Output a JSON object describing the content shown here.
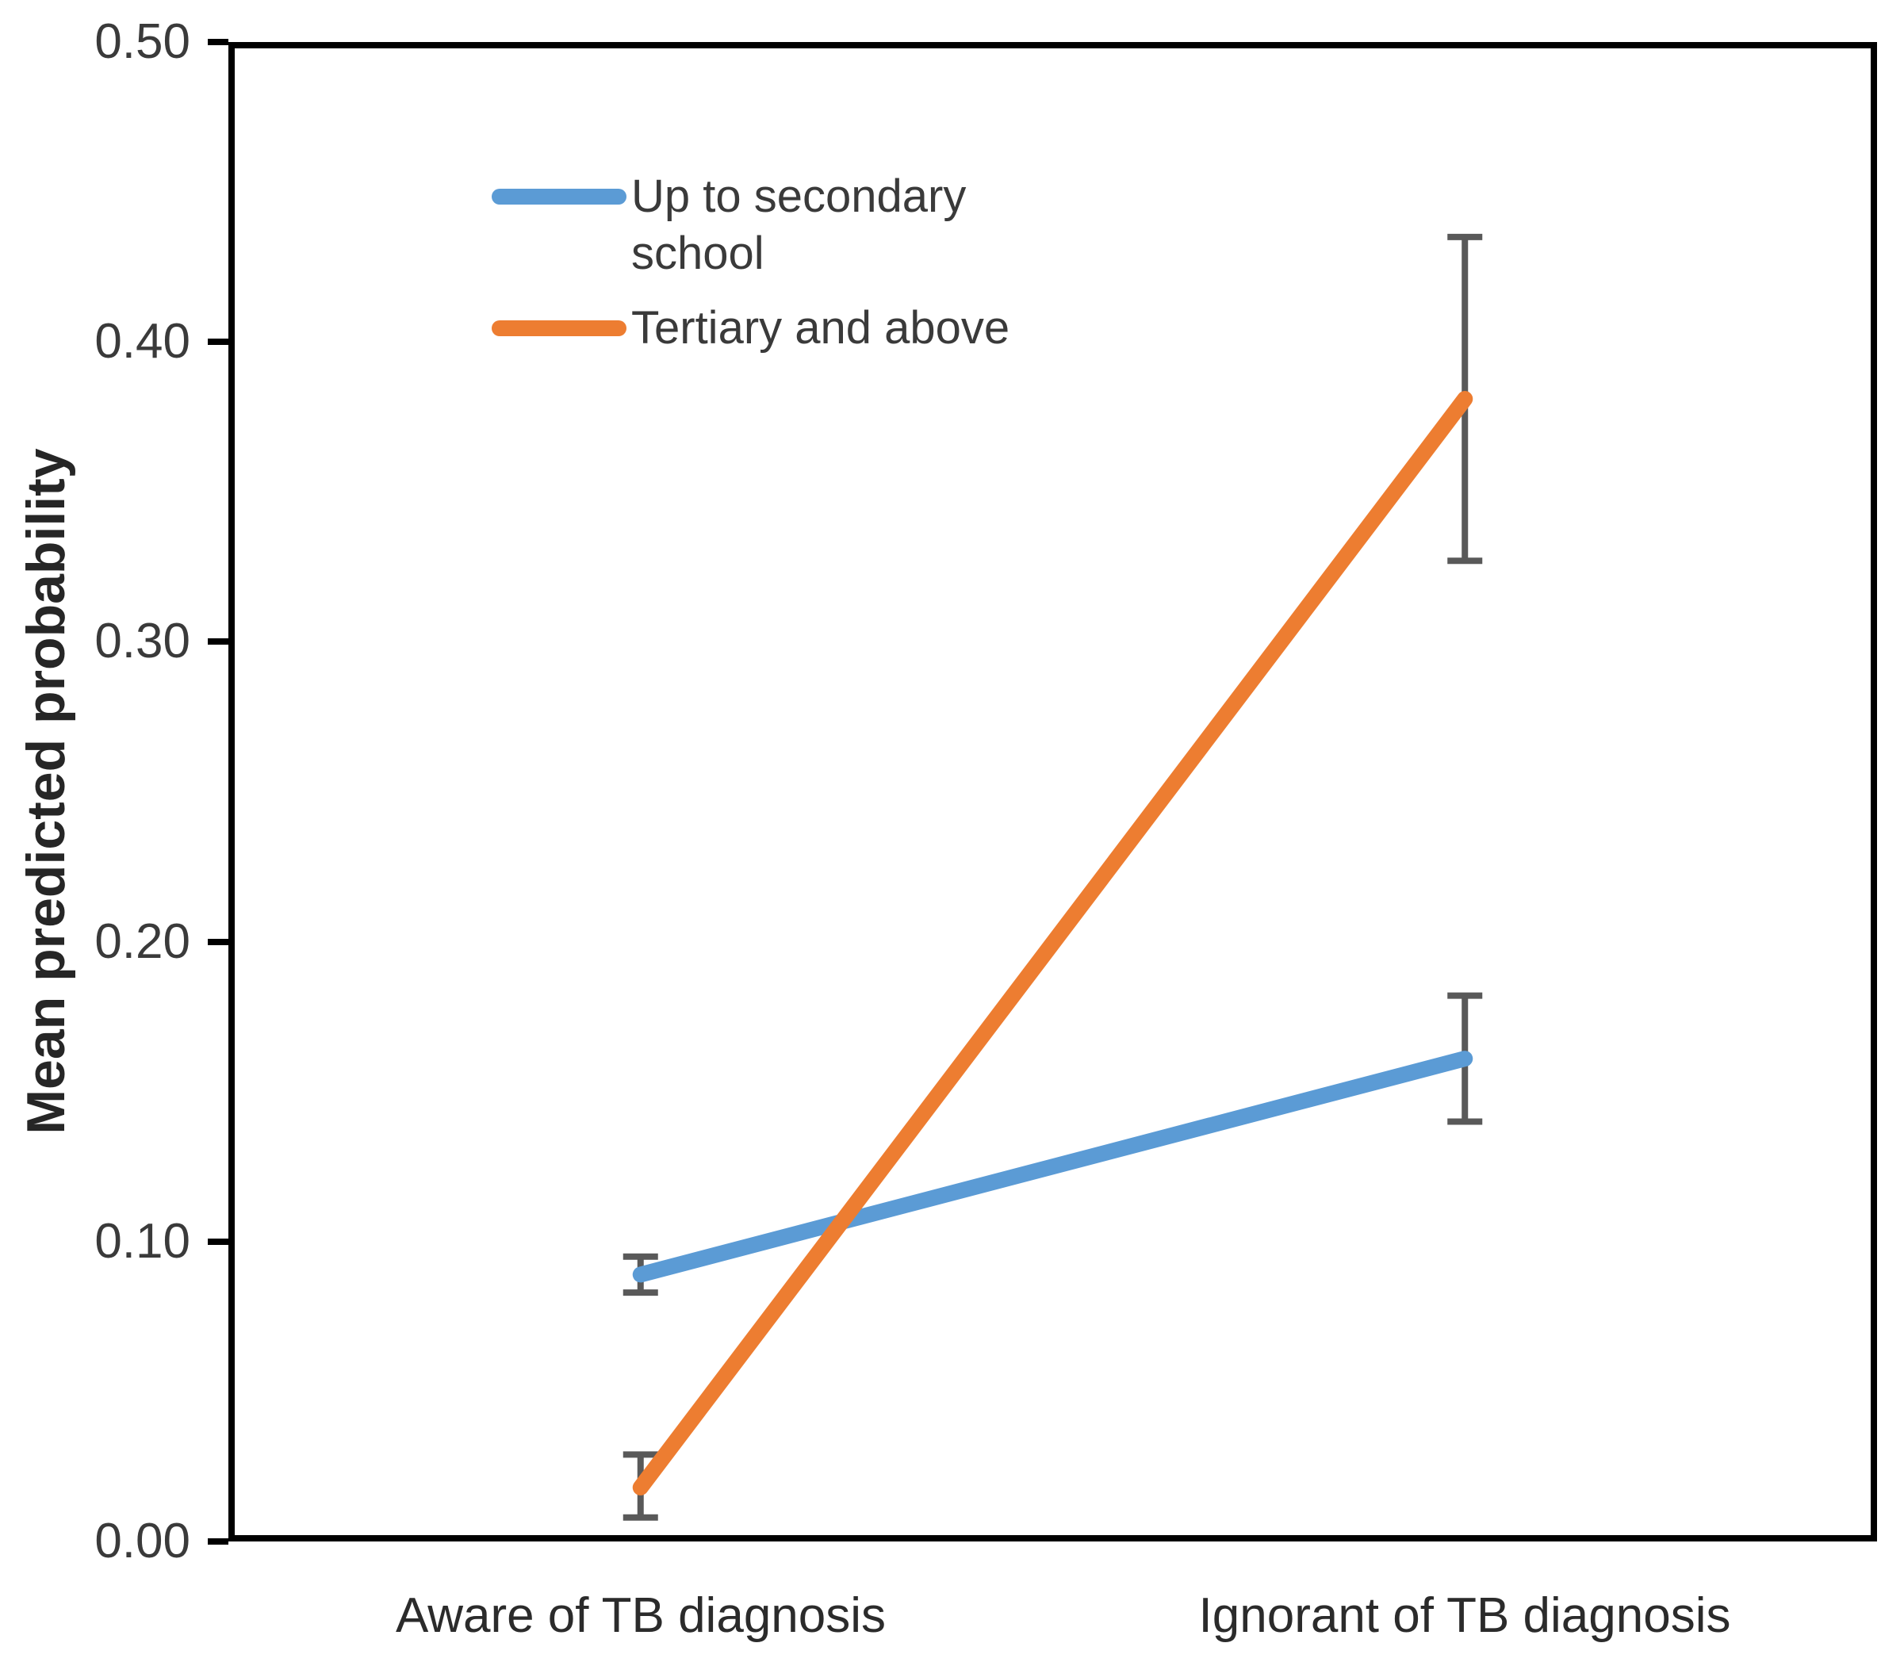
{
  "chart_data": {
    "type": "line",
    "title": "",
    "categories": [
      "Aware of TB diagnosis",
      "Ignorant of TB diagnosis"
    ],
    "series": [
      {
        "name": "Up to secondary school",
        "color": "#5B9BD5",
        "values": [
          0.089,
          0.161
        ],
        "error_low": [
          0.083,
          0.14
        ],
        "error_high": [
          0.095,
          0.182
        ]
      },
      {
        "name": "Tertiary and above",
        "color": "#ED7D31",
        "values": [
          0.018,
          0.381
        ],
        "error_low": [
          0.008,
          0.327
        ],
        "error_high": [
          0.029,
          0.435
        ]
      }
    ],
    "xlabel": "",
    "ylabel": "Mean predicted probability",
    "ylim": [
      0.0,
      0.5
    ],
    "ytick_step": 0.1,
    "ytick_labels": [
      "0.00",
      "0.10",
      "0.20",
      "0.30",
      "0.40",
      "0.50"
    ],
    "ytick_format_decimals": 2,
    "grid": false,
    "legend_position": "upper-left-inside",
    "error_bar_color": "#595959",
    "axis_color": "#000000"
  }
}
